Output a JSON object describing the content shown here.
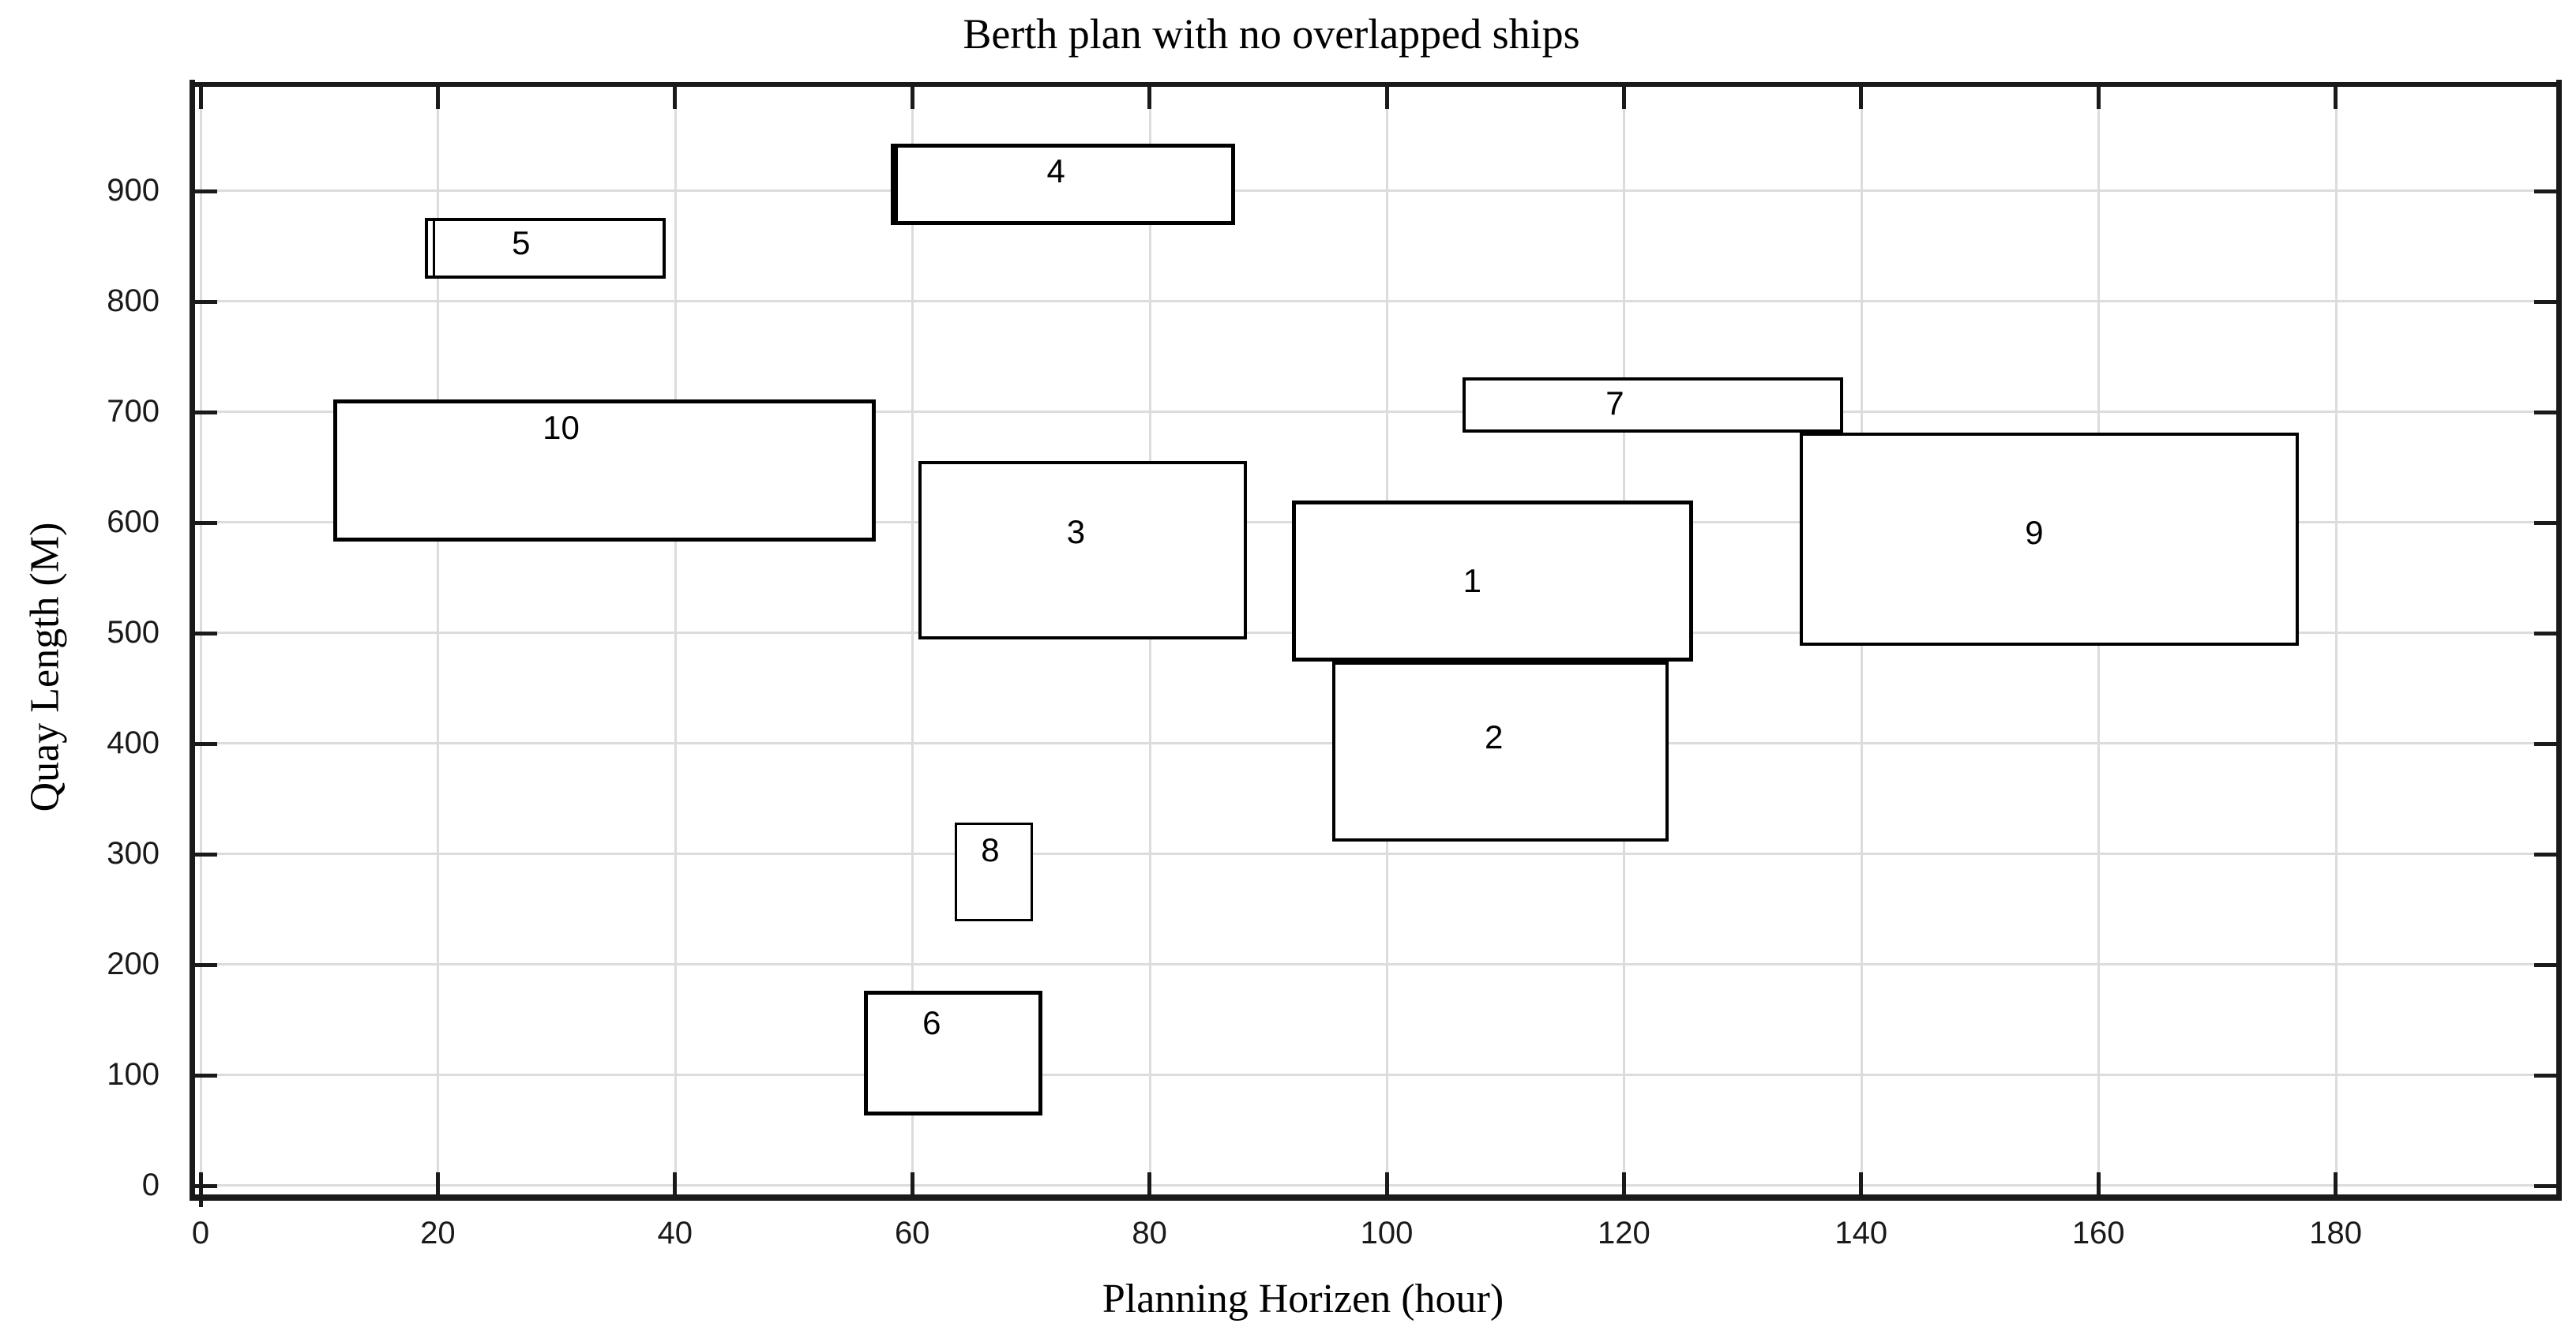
{
  "chart_data": {
    "type": "rect-gantt",
    "title": "Berth plan with no overlapped ships",
    "xlabel": "Planning Horizen (hour)",
    "ylabel": "Quay Length (M)",
    "x_ticks": [
      0,
      20,
      40,
      60,
      80,
      100,
      120,
      140,
      160,
      180
    ],
    "y_ticks": [
      0,
      100,
      200,
      300,
      400,
      500,
      600,
      700,
      800,
      900
    ],
    "xlim": [
      -1,
      198.7
    ],
    "ylim": [
      -9,
      1000
    ],
    "grid": true,
    "gridline_color": "#dcdcdc",
    "frame_color": "#1a1a1a",
    "rect_fill": "#ffffff",
    "rect_stroke": "#000000",
    "legend": "none",
    "ships": [
      {
        "id": "1",
        "t_start": 92.0,
        "t_end": 125.8,
        "q_start": 473.5,
        "q_end": 619.0,
        "stroke": 5,
        "label_fx": 0.45,
        "label_fy": 0.5
      },
      {
        "id": "2",
        "t_start": 95.4,
        "t_end": 123.8,
        "q_start": 311.0,
        "q_end": 473.5,
        "stroke": 4,
        "label_fx": 0.48,
        "label_fy": 0.42
      },
      {
        "id": "3",
        "t_start": 60.5,
        "t_end": 88.2,
        "q_start": 493.5,
        "q_end": 655.0,
        "stroke": 4,
        "label_fx": 0.48,
        "label_fy": 0.4
      },
      {
        "id": "4",
        "t_start": 58.2,
        "t_end": 87.2,
        "q_start": 868.5,
        "q_end": 942.0,
        "stroke": 5,
        "stroke_left": 9,
        "label_fx": 0.48,
        "label_fy": 0.34
      },
      {
        "id": "5",
        "t_start": 18.9,
        "t_end": 39.2,
        "q_start": 820.0,
        "q_end": 875.0,
        "stroke": 4,
        "inner_left_t": 19.6,
        "label_fx": 0.4,
        "label_fy": 0.42
      },
      {
        "id": "6",
        "t_start": 55.9,
        "t_end": 71.0,
        "q_start": 63.0,
        "q_end": 176.0,
        "stroke": 5,
        "label_fx": 0.38,
        "label_fy": 0.26
      },
      {
        "id": "7",
        "t_start": 106.4,
        "t_end": 138.5,
        "q_start": 680.5,
        "q_end": 730.5,
        "stroke": 4,
        "label_fx": 0.4,
        "label_fy": 0.46
      },
      {
        "id": "8",
        "t_start": 63.6,
        "t_end": 70.2,
        "q_start": 238.5,
        "q_end": 328.0,
        "stroke": 3,
        "label_fx": 0.45,
        "label_fy": 0.28
      },
      {
        "id": "9",
        "t_start": 134.8,
        "t_end": 176.9,
        "q_start": 488.0,
        "q_end": 680.5,
        "stroke": 4,
        "label_fx": 0.47,
        "label_fy": 0.47
      },
      {
        "id": "10",
        "t_start": 11.2,
        "t_end": 56.9,
        "q_start": 582.0,
        "q_end": 710.5,
        "stroke": 5,
        "label_fx": 0.42,
        "label_fy": 0.2
      }
    ]
  }
}
